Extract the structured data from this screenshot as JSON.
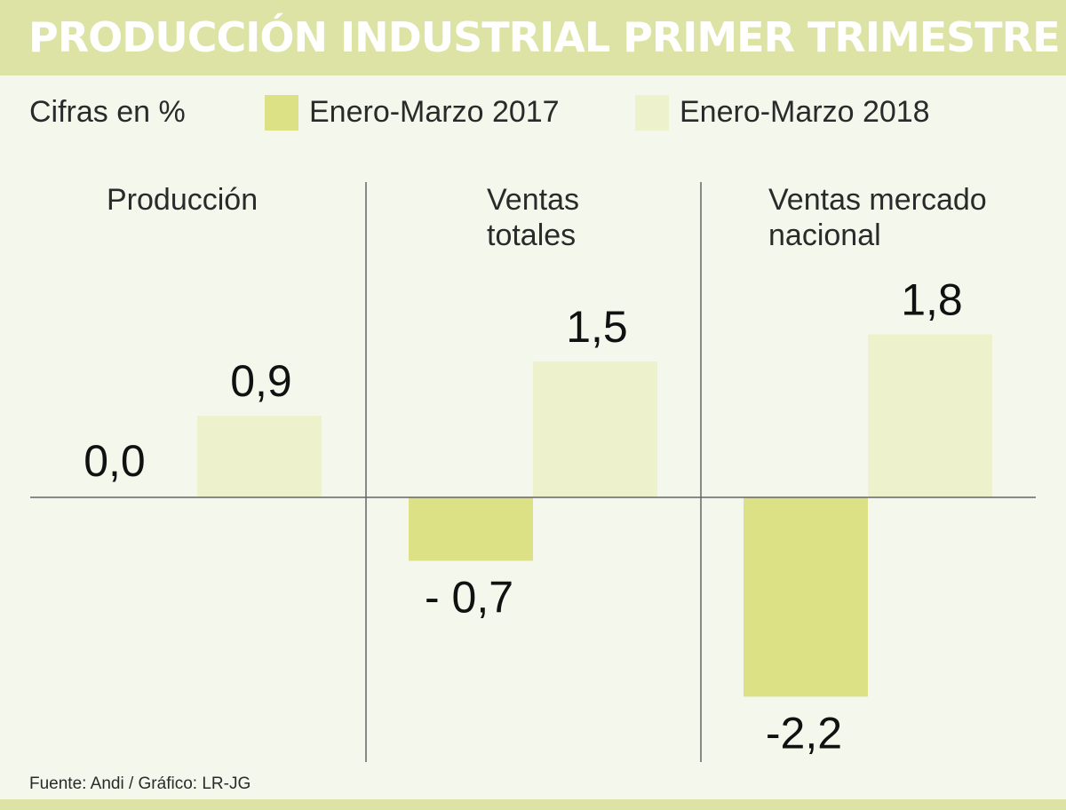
{
  "header": {
    "title": "PRODUCCIÓN INDUSTRIAL PRIMER TRIMESTRE"
  },
  "legend": {
    "units": "Cifras en %",
    "items": [
      {
        "label": "Enero-Marzo 2017",
        "color": "#dde185"
      },
      {
        "label": "Enero-Marzo 2018",
        "color": "#eef2cc"
      }
    ]
  },
  "footer": {
    "source": "Fuente: Andi / Gráfico: LR-JG"
  },
  "colors": {
    "title_bar": "#dde3a4",
    "background": "#f3f7ec",
    "axis": "#666666",
    "text": "#111111"
  },
  "chart_data": {
    "type": "bar",
    "title": "PRODUCCIÓN INDUSTRIAL PRIMER TRIMESTRE",
    "ylabel": "",
    "categories": [
      {
        "lines": [
          "Producción"
        ]
      },
      {
        "lines": [
          "Ventas",
          "totales"
        ]
      },
      {
        "lines": [
          "Ventas mercado",
          "nacional"
        ]
      }
    ],
    "series": [
      {
        "name": "Enero-Marzo 2017",
        "values": [
          0.0,
          -0.7,
          -2.2
        ],
        "labels": [
          "0,0",
          "- 0,7",
          "-2,2"
        ]
      },
      {
        "name": "Enero-Marzo 2018",
        "values": [
          0.9,
          1.5,
          1.8
        ],
        "labels": [
          "0,9",
          "1,5",
          "1,8"
        ]
      }
    ],
    "grid": false,
    "legend_position": "top"
  }
}
